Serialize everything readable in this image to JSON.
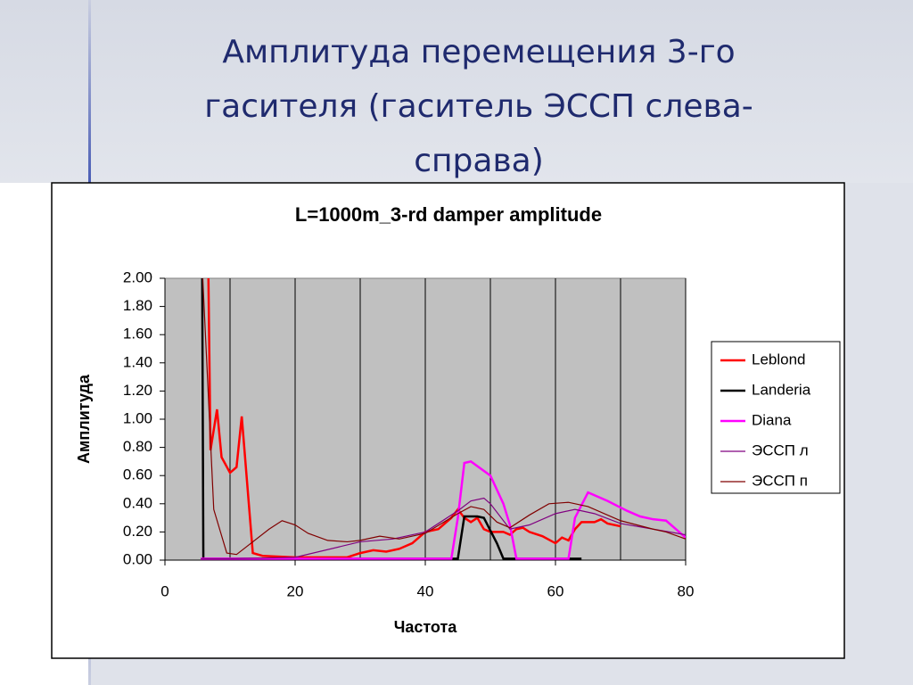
{
  "slide_title": "Амплитуда перемещения 3-го гасителя (гаситель ЭССП слева-справа)",
  "chart_data": {
    "type": "line",
    "title": "L=1000m_3-rd damper amplitude",
    "x_label": "Частота",
    "y_label": "Амплитуда",
    "xlim": [
      0,
      80
    ],
    "xticks": [
      0,
      20,
      40,
      60,
      80
    ],
    "ylim": [
      0,
      2
    ],
    "yticks": [
      {
        "value": 0,
        "label": "0.00"
      },
      {
        "value": 0.2,
        "label": "0.20"
      },
      {
        "value": 0.4,
        "label": "0.40"
      },
      {
        "value": 0.6,
        "label": "0.60"
      },
      {
        "value": 0.8,
        "label": "0.80"
      },
      {
        "value": 1,
        "label": "1.00"
      },
      {
        "value": 1.2,
        "label": "1.20"
      },
      {
        "value": 1.4,
        "label": "1.40"
      },
      {
        "value": 1.6,
        "label": "1.60"
      },
      {
        "value": 1.8,
        "label": "1.80"
      },
      {
        "value": 2,
        "label": "2.00"
      }
    ],
    "grid": true,
    "legend": "right",
    "series": [
      {
        "name": "Leblond",
        "color": "#ff0000",
        "width": 2.5,
        "x": [
          6.6,
          7,
          8,
          8.7,
          10,
          11,
          11.8,
          13.5,
          15,
          20,
          28,
          30,
          32,
          34,
          36,
          38,
          40,
          42,
          44,
          45,
          46,
          47,
          48,
          49,
          50,
          52,
          53,
          54,
          55,
          56,
          58,
          60,
          61,
          62,
          63,
          64,
          66,
          67,
          68,
          70
        ],
        "values": [
          2.3,
          0.78,
          1.07,
          0.73,
          0.62,
          0.66,
          1.02,
          0.05,
          0.03,
          0.02,
          0.02,
          0.05,
          0.07,
          0.06,
          0.08,
          0.12,
          0.2,
          0.22,
          0.3,
          0.36,
          0.3,
          0.27,
          0.3,
          0.22,
          0.2,
          0.2,
          0.18,
          0.22,
          0.23,
          0.2,
          0.17,
          0.12,
          0.16,
          0.14,
          0.22,
          0.27,
          0.27,
          0.29,
          0.26,
          0.24
        ]
      },
      {
        "name": "Landeria",
        "color": "#000000",
        "width": 2.5,
        "x": [
          5.7,
          5.9,
          45,
          46,
          48,
          49,
          51,
          52,
          64
        ],
        "values": [
          2.3,
          0.01,
          0.01,
          0.31,
          0.31,
          0.3,
          0.12,
          0.01,
          0.01
        ]
      },
      {
        "name": "Diana",
        "color": "#ff00ff",
        "width": 2.5,
        "x": [
          5.5,
          44,
          45,
          46,
          47,
          50,
          52,
          53,
          54,
          62,
          63,
          65,
          68,
          71,
          73,
          75,
          77,
          80
        ],
        "values": [
          0.01,
          0.01,
          0.3,
          0.69,
          0.7,
          0.6,
          0.4,
          0.25,
          0.01,
          0.01,
          0.3,
          0.48,
          0.42,
          0.35,
          0.31,
          0.29,
          0.28,
          0.16
        ]
      },
      {
        "name": "ЭССП л",
        "color": "#800080",
        "width": 1.2,
        "x": [
          5.5,
          10,
          20,
          30,
          35,
          40,
          45,
          47,
          49,
          50,
          53,
          56,
          60,
          63,
          66,
          70,
          75,
          80
        ],
        "values": [
          0.01,
          0.01,
          0.02,
          0.13,
          0.15,
          0.2,
          0.35,
          0.42,
          0.44,
          0.4,
          0.22,
          0.25,
          0.33,
          0.36,
          0.33,
          0.26,
          0.22,
          0.18
        ]
      },
      {
        "name": "ЭССП п",
        "color": "#800000",
        "width": 1.2,
        "x": [
          5.5,
          7.5,
          9.5,
          11,
          16,
          18,
          20,
          22,
          25,
          28,
          30,
          33,
          36,
          40,
          45,
          47,
          49,
          51,
          53,
          56,
          59,
          62,
          65,
          70,
          75,
          77,
          80
        ],
        "values": [
          2.3,
          0.36,
          0.05,
          0.04,
          0.22,
          0.28,
          0.25,
          0.19,
          0.14,
          0.13,
          0.14,
          0.17,
          0.15,
          0.19,
          0.33,
          0.38,
          0.36,
          0.27,
          0.23,
          0.32,
          0.4,
          0.41,
          0.38,
          0.28,
          0.22,
          0.2,
          0.15
        ]
      }
    ]
  }
}
